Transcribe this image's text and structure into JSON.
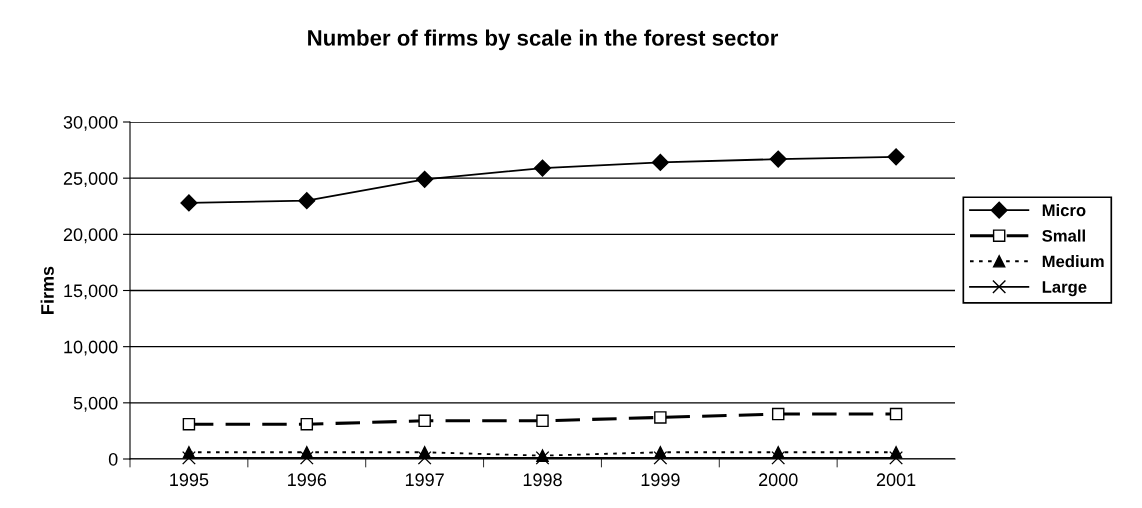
{
  "chart_data": {
    "type": "line",
    "title": "Number of firms by scale in the forest sector",
    "ylabel": "Firms",
    "categories": [
      "1995",
      "1996",
      "1997",
      "1998",
      "1999",
      "2000",
      "2001"
    ],
    "series": [
      {
        "name": "Micro",
        "color": "#000000",
        "marker": "diamond",
        "line_style": "solid",
        "values": [
          22800,
          23000,
          24900,
          25900,
          26400,
          26700,
          26900
        ]
      },
      {
        "name": "Small",
        "color": "#000000",
        "marker": "square",
        "line_style": "dashed",
        "values": [
          3100,
          3100,
          3400,
          3400,
          3700,
          4000,
          4000
        ]
      },
      {
        "name": "Medium",
        "color": "#000000",
        "marker": "triangle",
        "line_style": "dotted",
        "values": [
          600,
          600,
          600,
          300,
          600,
          600,
          600
        ]
      },
      {
        "name": "Large",
        "color": "#000000",
        "marker": "cross",
        "line_style": "solid",
        "values": [
          100,
          100,
          100,
          100,
          100,
          100,
          100
        ]
      }
    ],
    "ylim": [
      0,
      30000
    ],
    "yticks": [
      {
        "value": 0,
        "label": "0"
      },
      {
        "value": 5000,
        "label": "5,000"
      },
      {
        "value": 10000,
        "label": "10,000"
      },
      {
        "value": 15000,
        "label": "15,000"
      },
      {
        "value": 20000,
        "label": "20,000"
      },
      {
        "value": 25000,
        "label": "25,000"
      },
      {
        "value": 30000,
        "label": "30,000"
      }
    ],
    "grid": "y",
    "legend": "right"
  }
}
